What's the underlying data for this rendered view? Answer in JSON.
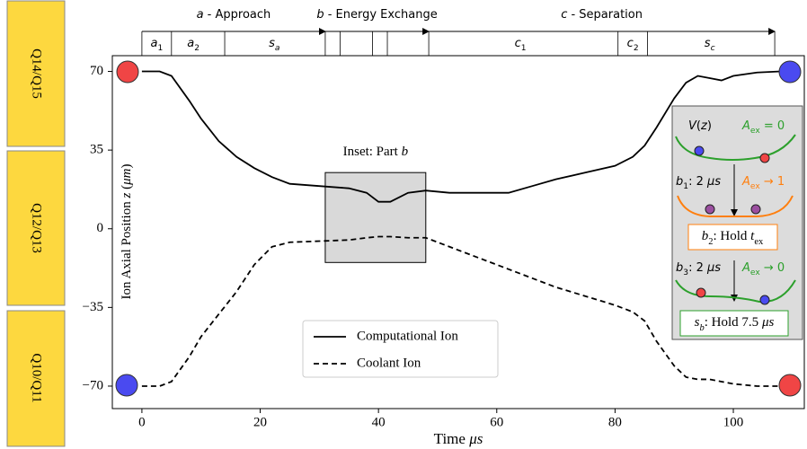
{
  "chart_data": {
    "type": "line",
    "x_label": [
      {
        "t": "Time "
      },
      {
        "t": "μs",
        "i": true
      }
    ],
    "y_label": [
      {
        "t": "Ion Axial Position "
      },
      {
        "t": "z",
        "i": true
      },
      {
        "t": " ("
      },
      {
        "t": "μm",
        "i": true
      },
      {
        "t": ")"
      }
    ],
    "x": [
      0,
      3,
      5,
      8,
      10,
      13,
      16,
      19,
      22,
      25,
      30,
      35,
      38,
      40,
      42,
      45,
      48,
      52,
      56,
      62,
      66,
      70,
      75,
      80,
      83,
      85,
      87,
      90,
      92,
      94,
      96,
      98,
      100,
      104,
      108
    ],
    "series": [
      {
        "name": "Computational Ion",
        "color": "#000000",
        "dash": false,
        "values": [
          70,
          70,
          68,
          57,
          49,
          39,
          32,
          27,
          23,
          20,
          19,
          18,
          16,
          12,
          12,
          16,
          17,
          16,
          16,
          16,
          19,
          22,
          25,
          28,
          32,
          37,
          45,
          58,
          65,
          68,
          67,
          66,
          68,
          69.5,
          70
        ]
      },
      {
        "name": "Coolant Ion",
        "color": "#000000",
        "dash": true,
        "values": [
          -70,
          -70,
          -68,
          -57,
          -48,
          -38,
          -28,
          -16,
          -8,
          -6,
          -5.5,
          -5,
          -4,
          -3.5,
          -3.5,
          -4,
          -4,
          -8,
          -12,
          -18,
          -22,
          -26,
          -30,
          -34,
          -37,
          -41,
          -50,
          -61,
          -66,
          -67,
          -67,
          -68,
          -69,
          -70,
          -70
        ]
      }
    ],
    "xlim": [
      -5,
      112
    ],
    "ylim": [
      -80,
      77
    ],
    "xticks": [
      0,
      20,
      40,
      60,
      80,
      100
    ],
    "yticks": [
      {
        "value": -70,
        "label": "−70"
      },
      {
        "value": -35,
        "label": "−35"
      },
      0,
      35,
      70
    ],
    "grid": false,
    "legend": "lower center",
    "zone_labels": [
      "Q14/Q15",
      "Q12/Q13",
      "Q10/Q11"
    ],
    "phases": [
      {
        "label": [
          {
            "t": "a",
            "i": true
          },
          {
            "t": " - Approach"
          }
        ],
        "start": 0,
        "end": 31
      },
      {
        "label": [
          {
            "t": "b",
            "i": true
          },
          {
            "t": " - Energy Exchange"
          }
        ],
        "start": 31,
        "end": 48.5
      },
      {
        "label": [
          {
            "t": "c",
            "i": true
          },
          {
            "t": " - Separation"
          }
        ],
        "start": 48.5,
        "end": 107
      }
    ],
    "phase_ticks": [
      0,
      5,
      14,
      31,
      33.5,
      39,
      41.5,
      48.5,
      80.5,
      85.5,
      107
    ],
    "subphases": [
      {
        "label": [
          {
            "t": "a",
            "i": true
          },
          {
            "t": "1",
            "sub": true
          }
        ],
        "x": 2.5
      },
      {
        "label": [
          {
            "t": "a",
            "i": true
          },
          {
            "t": "2",
            "sub": true
          }
        ],
        "x": 8.7
      },
      {
        "label": [
          {
            "t": "s",
            "i": true
          },
          {
            "t": "a",
            "sub": true,
            "i": true
          }
        ],
        "x": 22.4
      },
      {
        "label": [
          {
            "t": "c",
            "i": true
          },
          {
            "t": "1",
            "sub": true
          }
        ],
        "x": 64
      },
      {
        "label": [
          {
            "t": "c",
            "i": true
          },
          {
            "t": "2",
            "sub": true
          }
        ],
        "x": 83
      },
      {
        "label": [
          {
            "t": "s",
            "i": true
          },
          {
            "t": "c",
            "sub": true,
            "i": true
          }
        ],
        "x": 96
      }
    ],
    "inset": {
      "label": [
        {
          "t": "Inset: Part "
        },
        {
          "t": "b",
          "i": true
        }
      ],
      "xrange": [
        31,
        48
      ],
      "yrange": [
        -15,
        25
      ]
    },
    "panel": {
      "potential": [
        {
          "t": "V",
          "i": true
        },
        {
          "t": "("
        },
        {
          "t": "z",
          "i": true
        },
        {
          "t": ")"
        }
      ],
      "a0": [
        {
          "t": "A",
          "i": true
        },
        {
          "t": "ex",
          "sub": true
        },
        {
          "t": " = 0"
        }
      ],
      "b1": [
        {
          "t": "b",
          "i": true
        },
        {
          "t": "1",
          "sub": true
        },
        {
          "t": ": 2 "
        },
        {
          "t": "μs",
          "i": true
        }
      ],
      "a1": [
        {
          "t": "A",
          "i": true
        },
        {
          "t": "ex",
          "sub": true
        },
        {
          "t": " → 1"
        }
      ],
      "b2": [
        {
          "t": "b",
          "i": true
        },
        {
          "t": "2",
          "sub": true
        },
        {
          "t": ": Hold "
        },
        {
          "t": "t",
          "i": true
        },
        {
          "t": "ex",
          "sub": true
        }
      ],
      "b3": [
        {
          "t": "b",
          "i": true
        },
        {
          "t": "3",
          "sub": true
        },
        {
          "t": ": 2 "
        },
        {
          "t": "μs",
          "i": true
        }
      ],
      "a2": [
        {
          "t": "A",
          "i": true
        },
        {
          "t": "ex",
          "sub": true
        },
        {
          "t": " → 0"
        }
      ],
      "sb": [
        {
          "t": "s",
          "i": true
        },
        {
          "t": "b",
          "sub": true,
          "i": true
        },
        {
          "t": ": Hold 7.5 "
        },
        {
          "t": "μs",
          "i": true
        }
      ]
    }
  }
}
